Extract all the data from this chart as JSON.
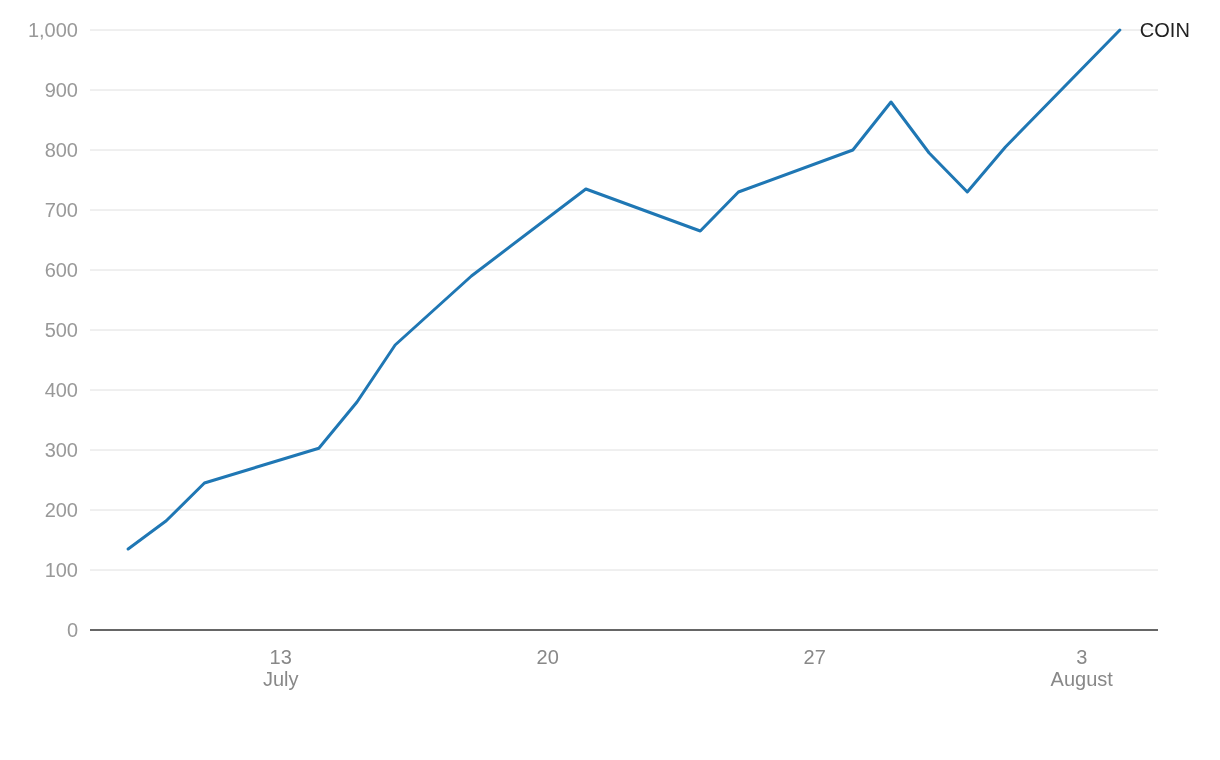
{
  "chart_data": {
    "type": "line",
    "x": [
      "--07-09",
      "--07-10",
      "--07-11",
      "--07-14",
      "--07-15",
      "--07-16",
      "--07-18",
      "--07-21",
      "--07-24",
      "--07-25",
      "--07-28",
      "--07-29",
      "--07-30",
      "--07-31",
      "--08-01",
      "--08-04"
    ],
    "series": [
      {
        "name": "COIN",
        "color": "#1f77b4",
        "values": [
          135,
          182,
          245,
          303,
          380,
          475,
          590,
          735,
          665,
          730,
          800,
          880,
          795,
          730,
          805,
          1000
        ]
      }
    ],
    "xlim": [
      "--07-08",
      "--08-05"
    ],
    "xticks": [
      {
        "value": "--07-13",
        "label": "13\nJuly"
      },
      {
        "value": "--07-20",
        "label": "20"
      },
      {
        "value": "--07-27",
        "label": "27"
      },
      {
        "value": "--08-03",
        "label": "3\nAugust"
      }
    ],
    "ylim": [
      0,
      1000
    ],
    "yticks": [
      0,
      100,
      200,
      300,
      400,
      500,
      600,
      700,
      800,
      900,
      {
        "value": 1000,
        "label": "1,000"
      }
    ],
    "grid": "y",
    "marker": "none",
    "line_style": "solid"
  }
}
